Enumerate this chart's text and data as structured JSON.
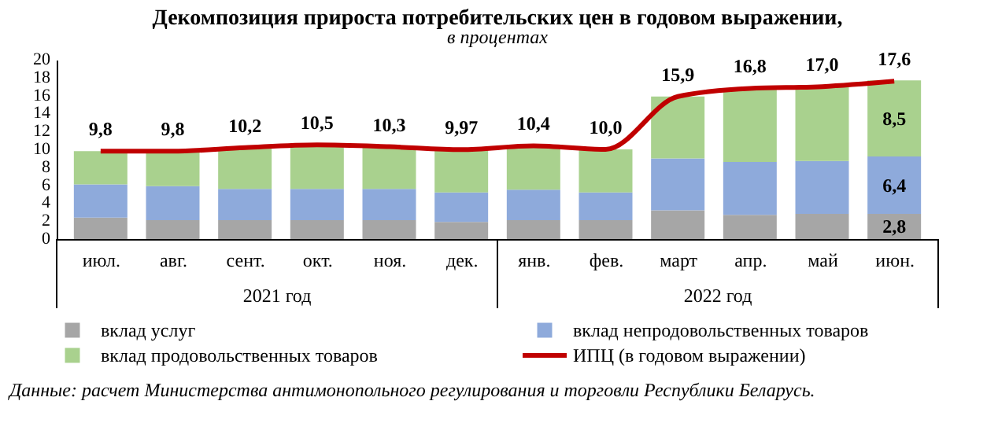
{
  "chart_data": {
    "type": "bar",
    "stacked": true,
    "title": "Декомпозиция прироста потребительских цен в годовом выражении,",
    "subtitle": "в процентах",
    "categories": [
      "июл.",
      "авг.",
      "сент.",
      "окт.",
      "ноя.",
      "дек.",
      "янв.",
      "фев.",
      "март",
      "апр.",
      "май",
      "июн."
    ],
    "series": [
      {
        "name": "вклад услуг",
        "color": "#a6a6a6",
        "values": [
          2.4,
          2.1,
          2.1,
          2.1,
          2.1,
          1.9,
          2.1,
          2.1,
          3.2,
          2.7,
          2.8,
          2.8
        ],
        "value_labels": [
          null,
          null,
          null,
          null,
          null,
          null,
          null,
          null,
          null,
          null,
          null,
          "2,8"
        ]
      },
      {
        "name": "вклад непродовольственных товаров",
        "color": "#8eaadb",
        "values": [
          3.7,
          3.8,
          3.5,
          3.5,
          3.5,
          3.3,
          3.4,
          3.1,
          5.8,
          5.9,
          5.9,
          6.4
        ],
        "value_labels": [
          null,
          null,
          null,
          null,
          null,
          null,
          null,
          null,
          null,
          null,
          null,
          "6,4"
        ]
      },
      {
        "name": "вклад продовольственных товаров",
        "color": "#a9d18e",
        "values": [
          3.7,
          3.9,
          4.6,
          4.9,
          4.7,
          4.8,
          4.9,
          4.8,
          6.9,
          8.2,
          8.3,
          8.5
        ],
        "value_labels": [
          null,
          null,
          null,
          null,
          null,
          null,
          null,
          null,
          null,
          null,
          null,
          "8,5"
        ]
      },
      {
        "name": "ИПЦ (в годовом выражении)",
        "type": "line",
        "color": "#c00000",
        "values": [
          9.8,
          9.8,
          10.2,
          10.5,
          10.3,
          9.97,
          10.4,
          10.0,
          15.9,
          16.8,
          17.0,
          17.6
        ],
        "value_labels": [
          "9,8",
          "9,8",
          "10,2",
          "10,5",
          "10,3",
          "9,97",
          "10,4",
          "10,0",
          "15,9",
          "16,8",
          "17,0",
          "17,6"
        ]
      }
    ],
    "ylim": [
      0,
      20
    ],
    "yticks": [
      0,
      2,
      4,
      6,
      8,
      10,
      12,
      14,
      16,
      18,
      20
    ],
    "grid": false,
    "legend": "bottom",
    "annotations": [
      "2021 год",
      "2022 год",
      "Данные: расчет Министерства антимонопольного регулирования и торговли Республики Беларусь."
    ]
  }
}
